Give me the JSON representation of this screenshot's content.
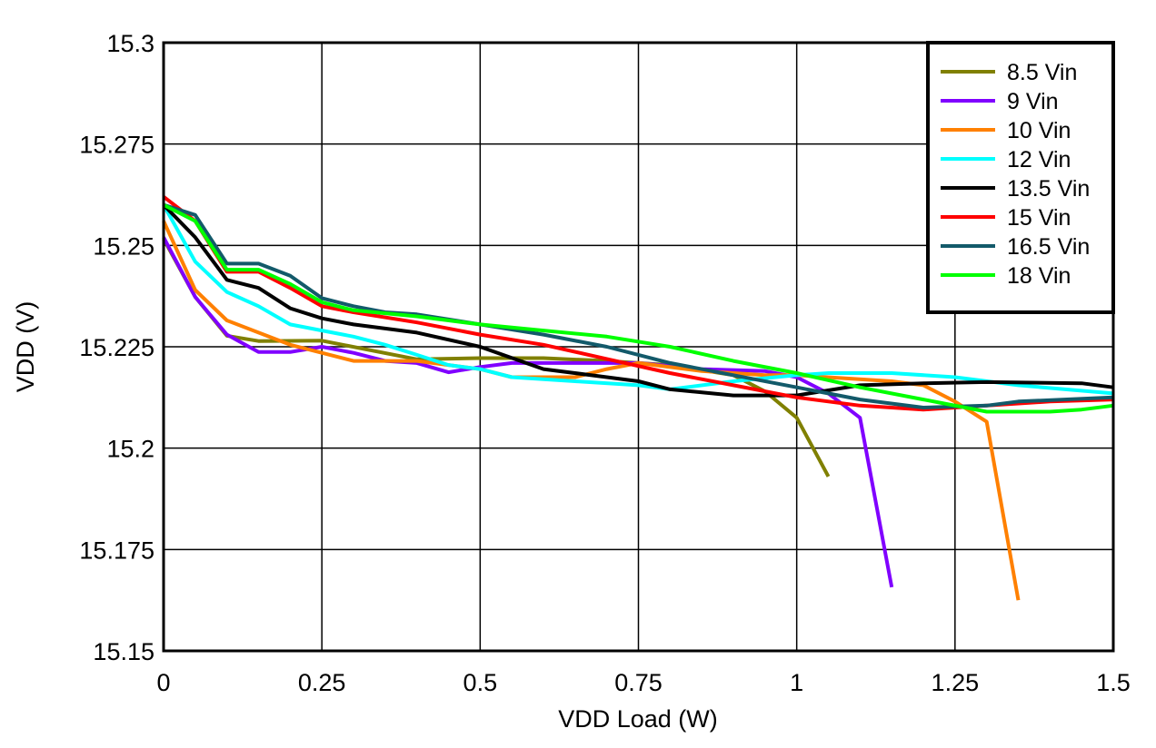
{
  "chart_data": {
    "type": "line",
    "title": "",
    "xlabel": "VDD Load (W)",
    "ylabel": "VDD (V)",
    "xlim": [
      0,
      1.5
    ],
    "ylim": [
      15.15,
      15.3
    ],
    "xticks": [
      "0",
      "0.25",
      "0.5",
      "0.75",
      "1",
      "1.25",
      "1.5"
    ],
    "xtick_values": [
      0,
      0.25,
      0.5,
      0.75,
      1,
      1.25,
      1.5
    ],
    "yticks": [
      "15.15",
      "15.175",
      "15.2",
      "15.225",
      "15.25",
      "15.275",
      "15.3"
    ],
    "ytick_values": [
      15.15,
      15.175,
      15.2,
      15.225,
      15.25,
      15.275,
      15.3
    ],
    "grid": true,
    "legend_position": "top-right",
    "series": [
      {
        "name": "8.5 Vin",
        "color": "#808000",
        "points": [
          [
            0,
            15.2516
          ],
          [
            0.05,
            15.2373
          ],
          [
            0.1,
            15.2277
          ],
          [
            0.15,
            15.2264
          ],
          [
            0.25,
            15.2265
          ],
          [
            0.4,
            15.2219
          ],
          [
            0.5,
            15.2222
          ],
          [
            0.6,
            15.2222
          ],
          [
            0.7,
            15.2215
          ],
          [
            0.8,
            15.2205
          ],
          [
            0.9,
            15.218
          ],
          [
            0.95,
            15.214
          ],
          [
            1.0,
            15.2075
          ],
          [
            1.05,
            15.193
          ]
        ]
      },
      {
        "name": "9 Vin",
        "color": "#8000FF",
        "points": [
          [
            0,
            15.252
          ],
          [
            0.05,
            15.2373
          ],
          [
            0.1,
            15.228
          ],
          [
            0.15,
            15.2237
          ],
          [
            0.2,
            15.2237
          ],
          [
            0.25,
            15.225
          ],
          [
            0.3,
            15.2235
          ],
          [
            0.35,
            15.2215
          ],
          [
            0.4,
            15.221
          ],
          [
            0.45,
            15.2187
          ],
          [
            0.5,
            15.22
          ],
          [
            0.55,
            15.221
          ],
          [
            0.65,
            15.221
          ],
          [
            0.75,
            15.221
          ],
          [
            0.85,
            15.2195
          ],
          [
            0.95,
            15.219
          ],
          [
            1.0,
            15.2175
          ],
          [
            1.05,
            15.2135
          ],
          [
            1.1,
            15.2075
          ],
          [
            1.15,
            15.1657
          ]
        ]
      },
      {
        "name": "10 Vin",
        "color": "#FF8000",
        "points": [
          [
            0,
            15.256
          ],
          [
            0.05,
            15.239
          ],
          [
            0.1,
            15.2315
          ],
          [
            0.15,
            15.2285
          ],
          [
            0.2,
            15.2255
          ],
          [
            0.25,
            15.2235
          ],
          [
            0.3,
            15.2215
          ],
          [
            0.4,
            15.2215
          ],
          [
            0.5,
            15.2195
          ],
          [
            0.55,
            15.2175
          ],
          [
            0.65,
            15.2175
          ],
          [
            0.7,
            15.2195
          ],
          [
            0.75,
            15.221
          ],
          [
            0.85,
            15.219
          ],
          [
            0.95,
            15.218
          ],
          [
            1.0,
            15.218
          ],
          [
            1.15,
            15.2165
          ],
          [
            1.2,
            15.2155
          ],
          [
            1.25,
            15.2115
          ],
          [
            1.3,
            15.2065
          ],
          [
            1.35,
            15.1625
          ]
        ]
      },
      {
        "name": "12 Vin",
        "color": "#00FFFF",
        "points": [
          [
            0,
            15.26
          ],
          [
            0.05,
            15.246
          ],
          [
            0.1,
            15.2385
          ],
          [
            0.15,
            15.235
          ],
          [
            0.2,
            15.2305
          ],
          [
            0.25,
            15.229
          ],
          [
            0.3,
            15.2275
          ],
          [
            0.35,
            15.2255
          ],
          [
            0.4,
            15.223
          ],
          [
            0.45,
            15.2205
          ],
          [
            0.5,
            15.2195
          ],
          [
            0.55,
            15.2175
          ],
          [
            0.65,
            15.2165
          ],
          [
            0.75,
            15.2155
          ],
          [
            0.8,
            15.2145
          ],
          [
            0.9,
            15.2165
          ],
          [
            1.0,
            15.218
          ],
          [
            1.05,
            15.2185
          ],
          [
            1.15,
            15.2185
          ],
          [
            1.25,
            15.2175
          ],
          [
            1.35,
            15.2155
          ],
          [
            1.5,
            15.2135
          ]
        ]
      },
      {
        "name": "13.5 Vin",
        "color": "#000000",
        "points": [
          [
            0,
            15.26
          ],
          [
            0.05,
            15.252
          ],
          [
            0.1,
            15.2415
          ],
          [
            0.15,
            15.2395
          ],
          [
            0.2,
            15.2345
          ],
          [
            0.25,
            15.232
          ],
          [
            0.3,
            15.2305
          ],
          [
            0.4,
            15.2285
          ],
          [
            0.5,
            15.225
          ],
          [
            0.6,
            15.2195
          ],
          [
            0.7,
            15.2175
          ],
          [
            0.75,
            15.2165
          ],
          [
            0.8,
            15.2145
          ],
          [
            0.9,
            15.213
          ],
          [
            1.0,
            15.213
          ],
          [
            1.1,
            15.2155
          ],
          [
            1.2,
            15.216
          ],
          [
            1.3,
            15.2163
          ],
          [
            1.45,
            15.216
          ],
          [
            1.5,
            15.215
          ]
        ]
      },
      {
        "name": "15 Vin",
        "color": "#FF0000",
        "points": [
          [
            0,
            15.262
          ],
          [
            0.05,
            15.256
          ],
          [
            0.1,
            15.2435
          ],
          [
            0.15,
            15.2435
          ],
          [
            0.2,
            15.2395
          ],
          [
            0.25,
            15.235
          ],
          [
            0.3,
            15.2335
          ],
          [
            0.4,
            15.231
          ],
          [
            0.5,
            15.228
          ],
          [
            0.6,
            15.2255
          ],
          [
            0.7,
            15.222
          ],
          [
            0.8,
            15.2185
          ],
          [
            0.9,
            15.2155
          ],
          [
            1.0,
            15.2125
          ],
          [
            1.1,
            15.2105
          ],
          [
            1.2,
            15.2095
          ],
          [
            1.3,
            15.2105
          ],
          [
            1.4,
            15.2115
          ],
          [
            1.5,
            15.212
          ]
        ]
      },
      {
        "name": "16.5 Vin",
        "color": "#135A6A",
        "points": [
          [
            0,
            15.26
          ],
          [
            0.05,
            15.2575
          ],
          [
            0.1,
            15.2455
          ],
          [
            0.15,
            15.2455
          ],
          [
            0.2,
            15.2425
          ],
          [
            0.25,
            15.237
          ],
          [
            0.3,
            15.235
          ],
          [
            0.35,
            15.2335
          ],
          [
            0.4,
            15.233
          ],
          [
            0.5,
            15.2305
          ],
          [
            0.6,
            15.228
          ],
          [
            0.7,
            15.225
          ],
          [
            0.8,
            15.221
          ],
          [
            0.9,
            15.218
          ],
          [
            1.0,
            15.215
          ],
          [
            1.1,
            15.212
          ],
          [
            1.2,
            15.21
          ],
          [
            1.3,
            15.2105
          ],
          [
            1.35,
            15.2115
          ],
          [
            1.5,
            15.2125
          ]
        ]
      },
      {
        "name": "18 Vin",
        "color": "#00FF00",
        "points": [
          [
            0,
            15.26
          ],
          [
            0.05,
            15.256
          ],
          [
            0.1,
            15.244
          ],
          [
            0.15,
            15.244
          ],
          [
            0.2,
            15.2405
          ],
          [
            0.25,
            15.236
          ],
          [
            0.3,
            15.234
          ],
          [
            0.4,
            15.2325
          ],
          [
            0.5,
            15.2305
          ],
          [
            0.6,
            15.229
          ],
          [
            0.7,
            15.2275
          ],
          [
            0.8,
            15.225
          ],
          [
            0.9,
            15.2215
          ],
          [
            1.0,
            15.2185
          ],
          [
            1.1,
            15.215
          ],
          [
            1.2,
            15.212
          ],
          [
            1.3,
            15.209
          ],
          [
            1.4,
            15.209
          ],
          [
            1.45,
            15.2095
          ],
          [
            1.5,
            15.2105
          ]
        ]
      }
    ]
  }
}
